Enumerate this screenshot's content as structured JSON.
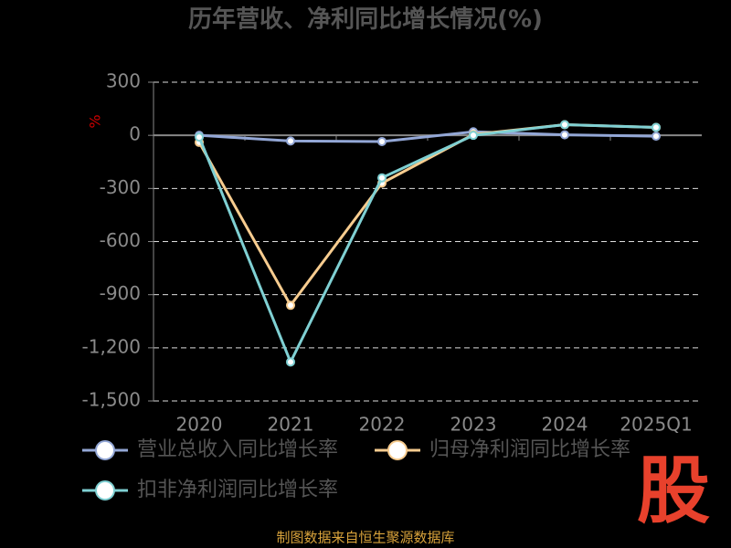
{
  "chart_data": {
    "type": "line",
    "title": "历年营收、净利同比增长情况(%)",
    "y_label": "%",
    "categories": [
      "2020",
      "2021",
      "2022",
      "2023",
      "2024",
      "2025Q1"
    ],
    "series": [
      {
        "name": "营业总收入同比增长率",
        "color": "#93a7d6",
        "values": [
          0,
          -32,
          -35,
          20,
          3,
          -5
        ]
      },
      {
        "name": "归母净利润同比增长率",
        "color": "#f7cc8f",
        "values": [
          -40,
          -960,
          -270,
          5,
          60,
          45
        ]
      },
      {
        "name": "扣非净利润同比增长率",
        "color": "#7fd0d3",
        "values": [
          -10,
          -1280,
          -240,
          0,
          60,
          45
        ]
      }
    ],
    "ylim": [
      -1500,
      300
    ],
    "yticks": [
      300,
      0,
      -300,
      -600,
      -900,
      {
        "value": -1200,
        "label": "-1,200"
      },
      {
        "value": -1500,
        "label": "-1,500"
      }
    ],
    "grid": true,
    "source": "制图数据来自恒生聚源数据库",
    "logo": "股"
  }
}
